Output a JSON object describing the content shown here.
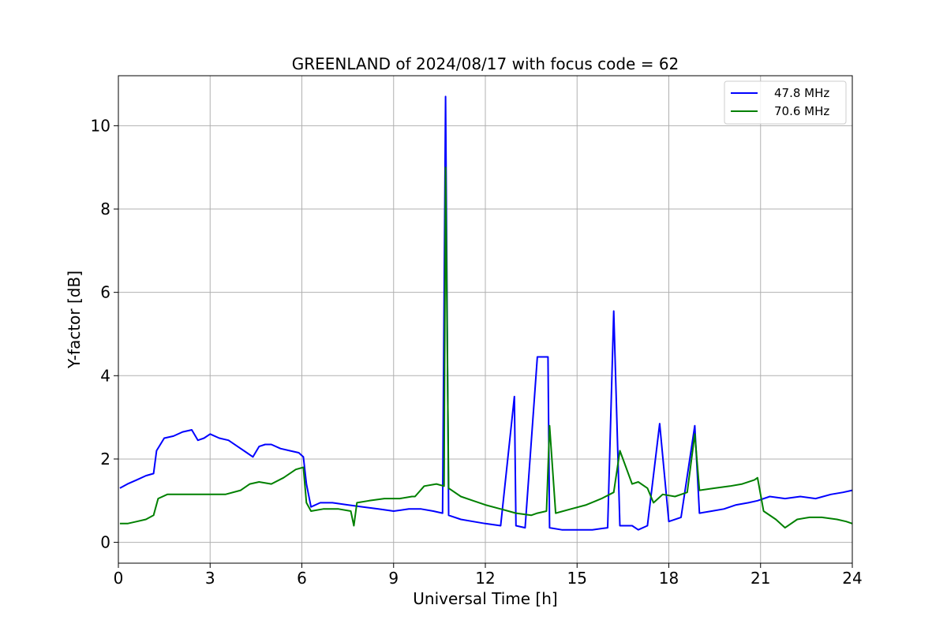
{
  "chart_data": {
    "type": "line",
    "title": "GREENLAND of 2024/08/17 with focus code = 62",
    "xlabel": "Universal Time [h]",
    "ylabel": "Y-factor [dB]",
    "xlim": [
      0,
      24
    ],
    "ylim": [
      -0.5,
      11.2
    ],
    "xticks": [
      "0",
      "3",
      "6",
      "9",
      "12",
      "15",
      "18",
      "21",
      "24"
    ],
    "yticks": [
      "0",
      "2",
      "4",
      "6",
      "8",
      "10"
    ],
    "grid": true,
    "legend_position": "top-right",
    "series": [
      {
        "name": "47.8 MHz",
        "color": "#0000ff",
        "x": [
          0.05,
          0.3,
          0.6,
          0.9,
          1.15,
          1.25,
          1.5,
          1.8,
          2.1,
          2.4,
          2.6,
          2.8,
          3.0,
          3.3,
          3.6,
          3.9,
          4.2,
          4.4,
          4.6,
          4.8,
          5.0,
          5.3,
          5.6,
          5.9,
          6.05,
          6.15,
          6.3,
          6.6,
          7.0,
          7.5,
          8.0,
          8.5,
          9.0,
          9.5,
          9.9,
          10.3,
          10.6,
          10.7,
          10.8,
          11.2,
          11.6,
          12.0,
          12.5,
          12.95,
          13.0,
          13.3,
          13.7,
          14.05,
          14.1,
          14.5,
          15.0,
          15.5,
          16.0,
          16.2,
          16.4,
          16.8,
          17.0,
          17.3,
          17.7,
          18.0,
          18.4,
          18.85,
          19.0,
          19.4,
          19.8,
          20.2,
          20.6,
          20.9,
          21.3,
          21.8,
          22.3,
          22.8,
          23.3,
          23.7,
          24.0
        ],
        "y": [
          1.3,
          1.4,
          1.5,
          1.6,
          1.65,
          2.2,
          2.5,
          2.55,
          2.65,
          2.7,
          2.45,
          2.5,
          2.6,
          2.5,
          2.45,
          2.3,
          2.15,
          2.05,
          2.3,
          2.35,
          2.35,
          2.25,
          2.2,
          2.15,
          2.05,
          1.4,
          0.85,
          0.95,
          0.95,
          0.9,
          0.85,
          0.8,
          0.75,
          0.8,
          0.8,
          0.75,
          0.7,
          10.7,
          0.65,
          0.55,
          0.5,
          0.45,
          0.4,
          3.5,
          0.4,
          0.35,
          4.45,
          4.45,
          0.35,
          0.3,
          0.3,
          0.3,
          0.35,
          5.55,
          0.4,
          0.4,
          0.3,
          0.4,
          2.85,
          0.5,
          0.6,
          2.8,
          0.7,
          0.75,
          0.8,
          0.9,
          0.95,
          1.0,
          1.1,
          1.05,
          1.1,
          1.05,
          1.15,
          1.2,
          1.25
        ]
      },
      {
        "name": "70.6 MHz",
        "color": "#008000",
        "x": [
          0.05,
          0.3,
          0.6,
          0.9,
          1.15,
          1.3,
          1.6,
          2.0,
          2.5,
          3.0,
          3.5,
          4.0,
          4.3,
          4.6,
          5.0,
          5.4,
          5.8,
          6.05,
          6.15,
          6.3,
          6.7,
          7.2,
          7.6,
          7.7,
          7.8,
          8.2,
          8.7,
          9.2,
          9.6,
          9.7,
          10.0,
          10.4,
          10.65,
          10.7,
          10.8,
          11.2,
          11.6,
          12.0,
          12.5,
          13.0,
          13.5,
          13.7,
          14.0,
          14.1,
          14.3,
          14.8,
          15.3,
          15.8,
          16.2,
          16.4,
          16.8,
          17.0,
          17.3,
          17.5,
          17.8,
          18.2,
          18.6,
          18.85,
          19.0,
          19.5,
          20.0,
          20.4,
          20.8,
          20.9,
          21.1,
          21.5,
          21.8,
          22.2,
          22.6,
          23.0,
          23.5,
          23.8,
          24.0
        ],
        "y": [
          0.45,
          0.45,
          0.5,
          0.55,
          0.65,
          1.05,
          1.15,
          1.15,
          1.15,
          1.15,
          1.15,
          1.25,
          1.4,
          1.45,
          1.4,
          1.55,
          1.75,
          1.8,
          0.95,
          0.75,
          0.8,
          0.8,
          0.75,
          0.4,
          0.95,
          1.0,
          1.05,
          1.05,
          1.1,
          1.1,
          1.35,
          1.4,
          1.35,
          9.0,
          1.3,
          1.1,
          1.0,
          0.9,
          0.8,
          0.7,
          0.65,
          0.7,
          0.75,
          2.8,
          0.7,
          0.8,
          0.9,
          1.05,
          1.2,
          2.2,
          1.4,
          1.45,
          1.3,
          0.95,
          1.15,
          1.1,
          1.2,
          2.6,
          1.25,
          1.3,
          1.35,
          1.4,
          1.5,
          1.55,
          0.75,
          0.55,
          0.35,
          0.55,
          0.6,
          0.6,
          0.55,
          0.5,
          0.45
        ]
      }
    ]
  }
}
